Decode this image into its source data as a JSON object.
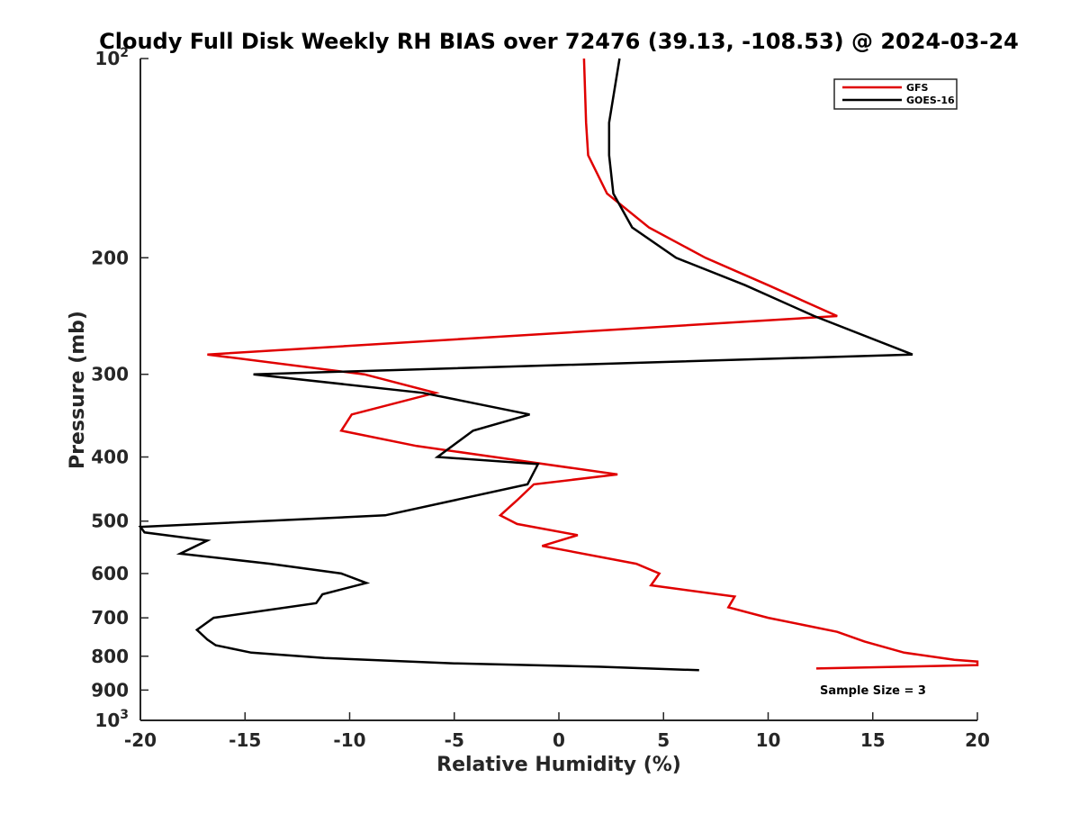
{
  "chart_data": {
    "type": "line",
    "title": "Cloudy Full Disk Weekly RH BIAS over 72476 (39.13, -108.53) @ 2024-03-24",
    "xlabel": "Relative Humidity (%)",
    "ylabel": "Pressure (mb)",
    "xlim": [
      -20,
      20
    ],
    "ylim": [
      100,
      1000
    ],
    "y_scale": "log",
    "y_reversed": true,
    "grid": false,
    "legend_position": "top-right",
    "x_ticks": [
      {
        "value": -20,
        "label": "-20"
      },
      {
        "value": -15,
        "label": "-15"
      },
      {
        "value": -10,
        "label": "-10"
      },
      {
        "value": -5,
        "label": "-5"
      },
      {
        "value": 0,
        "label": "0"
      },
      {
        "value": 5,
        "label": "5"
      },
      {
        "value": 10,
        "label": "10"
      },
      {
        "value": 15,
        "label": "15"
      },
      {
        "value": 20,
        "label": "20"
      }
    ],
    "y_ticks": [
      {
        "value": 100,
        "base": "10",
        "exp": "2"
      },
      {
        "value": 200,
        "label": "200"
      },
      {
        "value": 300,
        "label": "300"
      },
      {
        "value": 400,
        "label": "400"
      },
      {
        "value": 500,
        "label": "500"
      },
      {
        "value": 600,
        "label": "600"
      },
      {
        "value": 700,
        "label": "700"
      },
      {
        "value": 800,
        "label": "800"
      },
      {
        "value": 900,
        "label": "900"
      },
      {
        "value": 1000,
        "base": "10",
        "exp": "3"
      }
    ],
    "series": [
      {
        "name": "GFS",
        "color": "#e00000",
        "x": [
          1.2,
          1.3,
          1.4,
          2.3,
          4.3,
          7.0,
          10.0,
          13.3,
          -16.8,
          -9.3,
          -5.9,
          -9.9,
          -10.4,
          -6.8,
          2.8,
          -1.2,
          -2.0,
          -2.8,
          -2.0,
          0.9,
          -0.8,
          3.7,
          4.8,
          4.4,
          8.4,
          8.1,
          10.0,
          13.3,
          14.6,
          16.5,
          18.9,
          20.0,
          20.0,
          12.3
        ],
        "y": [
          100,
          125,
          140,
          160,
          180,
          200,
          220,
          245,
          280,
          300,
          320,
          345,
          365,
          385,
          425,
          440,
          465,
          490,
          505,
          525,
          545,
          580,
          600,
          625,
          650,
          675,
          700,
          735,
          760,
          790,
          810,
          815,
          825,
          835
        ]
      },
      {
        "name": "GOES-16",
        "color": "#000000",
        "x": [
          2.9,
          2.4,
          2.4,
          2.6,
          3.5,
          5.6,
          8.9,
          12.2,
          16.9,
          -14.6,
          -6.5,
          -1.4,
          -4.1,
          -5.8,
          -1.0,
          -1.5,
          -8.3,
          -20.0,
          -19.8,
          -16.8,
          -18.1,
          -13.8,
          -10.4,
          -9.2,
          -11.3,
          -11.6,
          -16.5,
          -17.3,
          -16.8,
          -16.4,
          -14.7,
          -11.2,
          -5.0,
          2.0,
          6.7
        ],
        "y": [
          100,
          125,
          140,
          160,
          180,
          200,
          220,
          245,
          280,
          300,
          320,
          345,
          365,
          400,
          410,
          440,
          490,
          510,
          520,
          535,
          560,
          580,
          600,
          620,
          645,
          665,
          700,
          730,
          755,
          770,
          790,
          805,
          820,
          830,
          840
        ]
      }
    ],
    "annotations": [
      "Sample Size = 3"
    ]
  }
}
